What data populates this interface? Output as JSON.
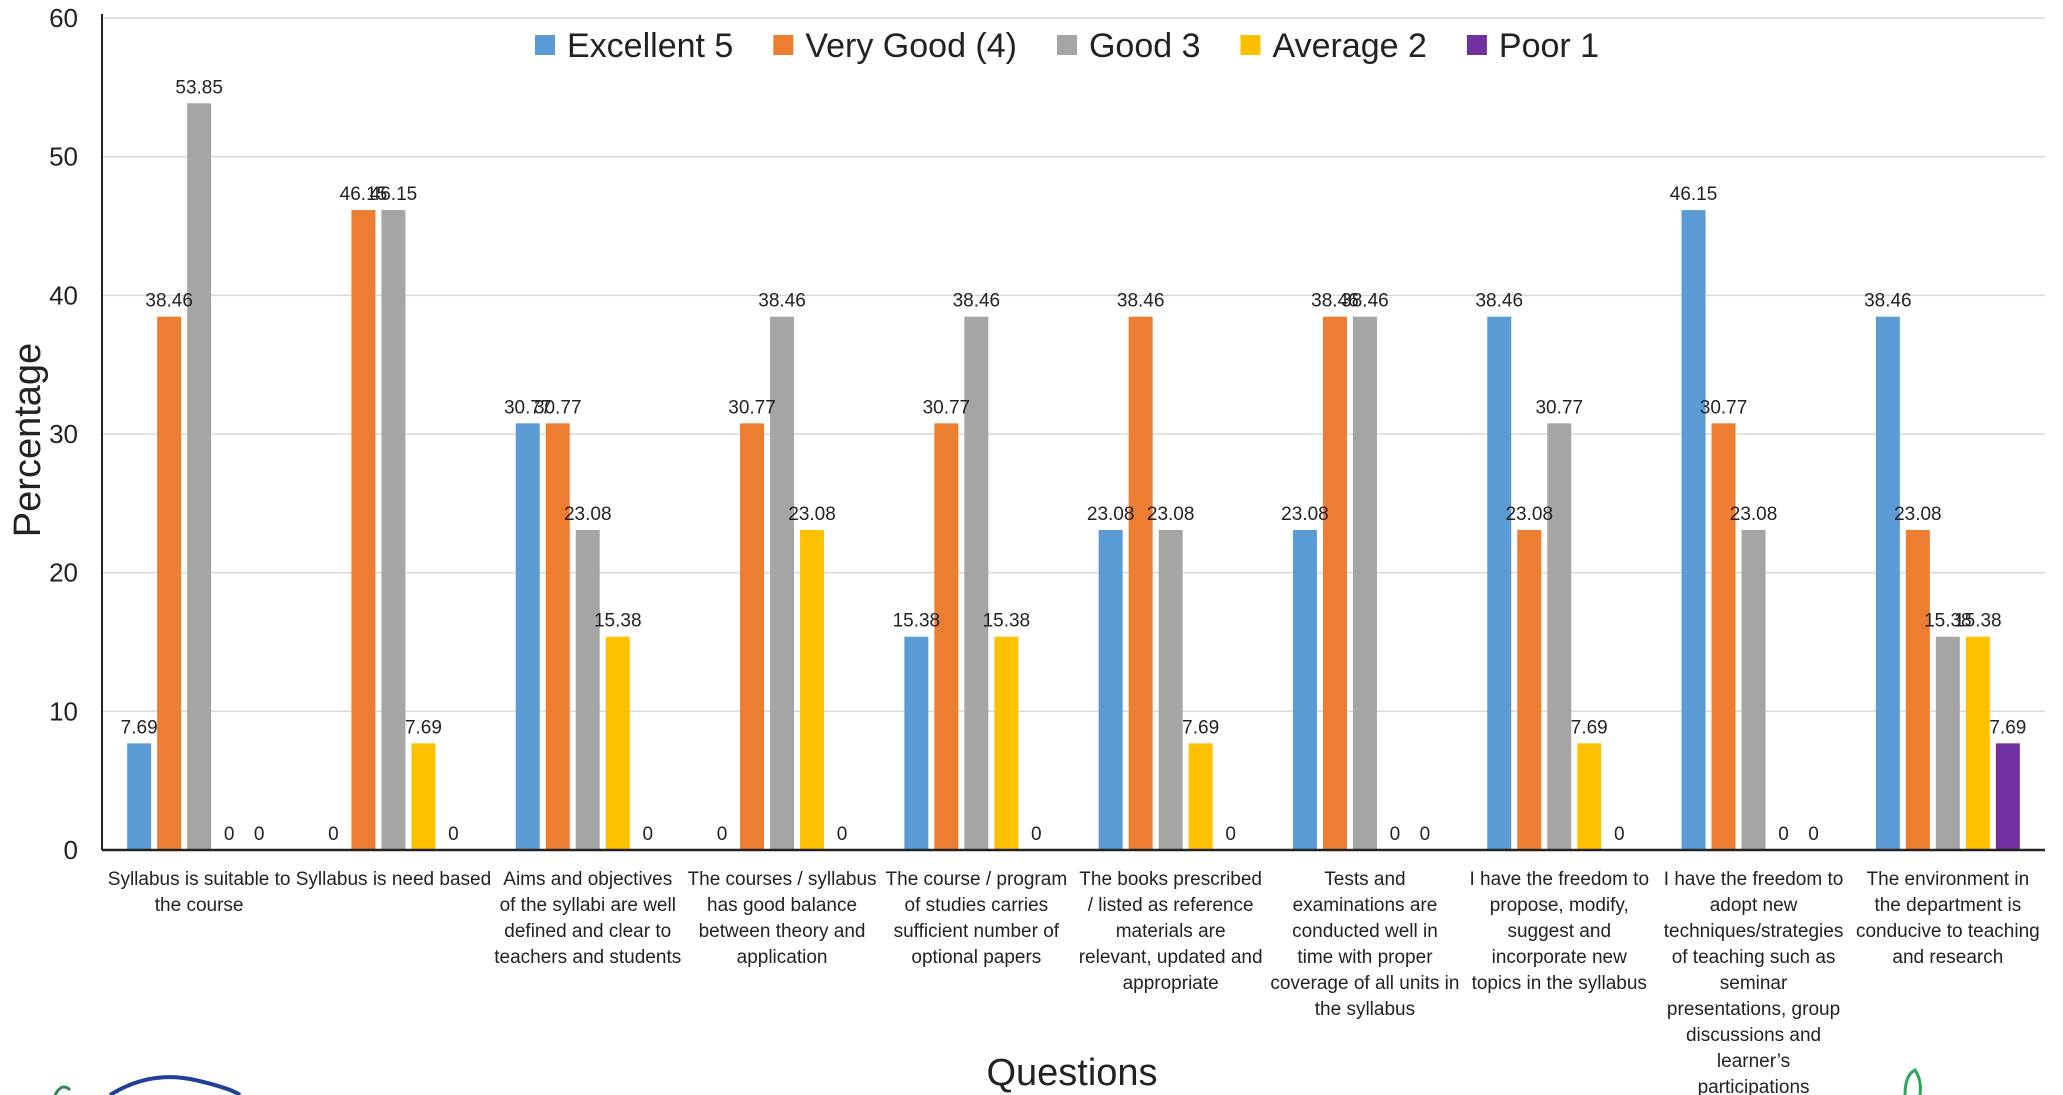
{
  "chart_data": {
    "type": "bar",
    "ylabel": "Percentage",
    "xlabel": "Questions",
    "ylim": [
      0,
      60
    ],
    "yticks": [
      0,
      10,
      20,
      30,
      40,
      50,
      60
    ],
    "grid": true,
    "legend_position": "top",
    "categories": [
      [
        "Syllabus is suitable to",
        "the course"
      ],
      [
        "Syllabus is need based"
      ],
      [
        "Aims and objectives",
        "of the syllabi are well",
        "defined and clear to",
        "teachers and students"
      ],
      [
        "The courses / syllabus",
        "has good balance",
        "between theory and",
        "application"
      ],
      [
        "The course / program",
        "of studies carries",
        "sufficient number of",
        "optional papers"
      ],
      [
        "The books prescribed",
        "/ listed as  reference",
        "materials are",
        "relevant, updated and",
        "appropriate"
      ],
      [
        "Tests and",
        "examinations are",
        "conducted well in",
        "time with proper",
        "coverage of all units in",
        "the syllabus"
      ],
      [
        "I have the freedom to",
        "propose, modify,",
        "suggest and",
        "incorporate new",
        "topics in the syllabus"
      ],
      [
        "I have the freedom to",
        "adopt new",
        "techniques/strategies",
        "of teaching such as",
        "seminar",
        "presentations, group",
        "discussions and",
        "learner’s",
        "participations"
      ],
      [
        "The environment in",
        "the department is",
        "conducive to teaching",
        "and research"
      ]
    ],
    "series": [
      {
        "name": "Excellent 5",
        "color": "#5B9BD5",
        "values": [
          7.69,
          0,
          30.77,
          0,
          15.38,
          23.08,
          23.08,
          38.46,
          46.15,
          38.46
        ]
      },
      {
        "name": "Very Good (4)",
        "color": "#ED7D31",
        "values": [
          38.46,
          46.15,
          30.77,
          30.77,
          30.77,
          38.46,
          38.46,
          23.08,
          30.77,
          23.08
        ]
      },
      {
        "name": "Good 3",
        "color": "#A5A5A5",
        "values": [
          53.85,
          46.15,
          23.08,
          38.46,
          38.46,
          23.08,
          38.46,
          30.77,
          23.08,
          15.38
        ]
      },
      {
        "name": "Average 2",
        "color": "#FFC000",
        "values": [
          0,
          7.69,
          15.38,
          23.08,
          15.38,
          7.69,
          0,
          7.69,
          0,
          15.38
        ]
      },
      {
        "name": "Poor 1",
        "color": "#7030A0",
        "values": [
          0,
          0,
          0,
          0,
          0,
          0,
          0,
          0,
          0,
          7.69
        ]
      }
    ]
  }
}
